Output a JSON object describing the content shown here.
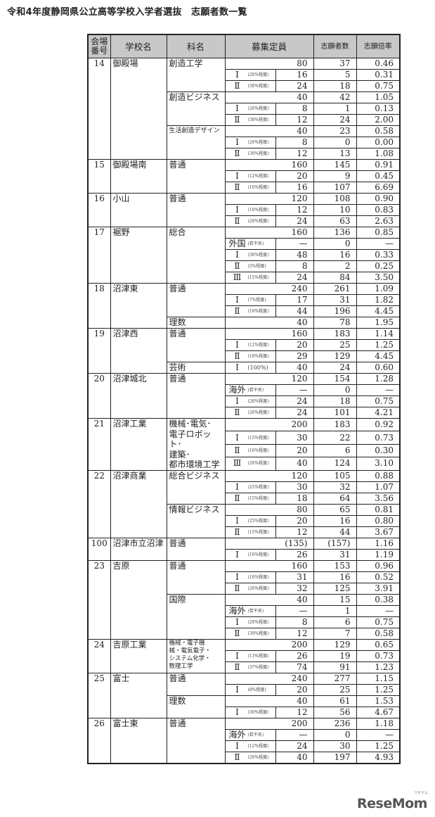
{
  "title": "令和4年度静岡県公立高等学校入学者選抜　志願者数一覧",
  "headers": {
    "no": "会場\n番号",
    "school": "学校名",
    "major": "科名",
    "capacity": "募集定員",
    "applicants": "志願者数",
    "ratio": "志願倍率"
  },
  "logo": {
    "text": "ReseMom",
    "sub": "リセマム"
  },
  "schools": [
    {
      "no": "14",
      "name": "御殿場",
      "majors": [
        {
          "name": "創造工学",
          "total": [
            "80",
            "37",
            "0.46"
          ],
          "subs": [
            [
              "Ⅰ",
              "(20%程度)",
              "16",
              "5",
              "0.31"
            ],
            [
              "Ⅱ",
              "(30%程度)",
              "24",
              "18",
              "0.75"
            ]
          ]
        },
        {
          "name": "創造ビジネス",
          "total": [
            "40",
            "42",
            "1.05"
          ],
          "subs": [
            [
              "Ⅰ",
              "(20%程度)",
              "8",
              "1",
              "0.13"
            ],
            [
              "Ⅱ",
              "(30%程度)",
              "12",
              "24",
              "2.00"
            ]
          ]
        },
        {
          "name": "生活創造デザイン",
          "style": "xs",
          "total": [
            "40",
            "23",
            "0.58"
          ],
          "subs": [
            [
              "Ⅰ",
              "(20%程度)",
              "8",
              "0",
              "0.00"
            ],
            [
              "Ⅱ",
              "(30%程度)",
              "12",
              "13",
              "1.08"
            ]
          ]
        }
      ]
    },
    {
      "no": "15",
      "name": "御殿場南",
      "majors": [
        {
          "name": "普通",
          "total": [
            "160",
            "145",
            "0.91"
          ],
          "subs": [
            [
              "Ⅰ",
              "(12%程度)",
              "20",
              "9",
              "0.45"
            ],
            [
              "Ⅱ",
              "(10%程度)",
              "16",
              "107",
              "6.69"
            ]
          ]
        }
      ]
    },
    {
      "no": "16",
      "name": "小山",
      "majors": [
        {
          "name": "普通",
          "total": [
            "120",
            "108",
            "0.90"
          ],
          "subs": [
            [
              "Ⅰ",
              "(10%程度)",
              "12",
              "10",
              "0.83"
            ],
            [
              "Ⅱ",
              "(20%程度)",
              "24",
              "63",
              "2.63"
            ]
          ]
        }
      ]
    },
    {
      "no": "17",
      "name": "裾野",
      "majors": [
        {
          "name": "総合",
          "total": [
            "160",
            "136",
            "0.85"
          ],
          "subs": [
            [
              "外国",
              "(若干名)",
              "—",
              "0",
              "—"
            ],
            [
              "Ⅰ",
              "(30%程度)",
              "48",
              "16",
              "0.33"
            ],
            [
              "Ⅱ",
              "(5%程度)",
              "8",
              "2",
              "0.25"
            ],
            [
              "Ⅲ",
              "(15%程度)",
              "24",
              "84",
              "3.50"
            ]
          ]
        }
      ]
    },
    {
      "no": "18",
      "name": "沼津東",
      "majors": [
        {
          "name": "普通",
          "total": [
            "240",
            "261",
            "1.09"
          ],
          "subs": [
            [
              "Ⅰ",
              "(7%程度)",
              "17",
              "31",
              "1.82"
            ],
            [
              "Ⅱ",
              "(18%程度)",
              "44",
              "196",
              "4.45"
            ]
          ]
        },
        {
          "name": "理数",
          "total": [
            "40",
            "78",
            "1.95"
          ],
          "subs": []
        }
      ]
    },
    {
      "no": "19",
      "name": "沼津西",
      "majors": [
        {
          "name": "普通",
          "total": [
            "160",
            "183",
            "1.14"
          ],
          "subs": [
            [
              "Ⅰ",
              "(12%程度)",
              "20",
              "25",
              "1.25"
            ],
            [
              "Ⅱ",
              "(18%程度)",
              "29",
              "129",
              "4.45"
            ]
          ]
        },
        {
          "name": "芸術",
          "total": null,
          "subs": [
            [
              "Ⅰ",
              "(100%)",
              "40",
              "24",
              "0.60"
            ]
          ]
        }
      ]
    },
    {
      "no": "20",
      "name": "沼津城北",
      "majors": [
        {
          "name": "普通",
          "total": [
            "120",
            "154",
            "1.28"
          ],
          "subs": [
            [
              "海外",
              "(若干名)",
              "—",
              "0",
              "—"
            ],
            [
              "Ⅰ",
              "(20%程度)",
              "24",
              "18",
              "0.75"
            ],
            [
              "Ⅱ",
              "(20%程度)",
              "24",
              "101",
              "4.21"
            ]
          ]
        }
      ]
    },
    {
      "no": "21",
      "name": "沼津工業",
      "majors": [
        {
          "name": "機械･電気･\n電子ロボット･\n建築･\n都市環境工学",
          "style": "multi",
          "total": [
            "200",
            "183",
            "0.92"
          ],
          "subs": [
            [
              "Ⅰ",
              "(15%程度)",
              "30",
              "22",
              "0.73"
            ],
            [
              "Ⅱ",
              "(10%程度)",
              "20",
              "6",
              "0.30"
            ],
            [
              "Ⅲ",
              "(20%程度)",
              "40",
              "124",
              "3.10"
            ]
          ]
        }
      ]
    },
    {
      "no": "22",
      "name": "沼津商業",
      "majors": [
        {
          "name": "総合ビジネス",
          "total": [
            "120",
            "105",
            "0.88"
          ],
          "subs": [
            [
              "Ⅰ",
              "(25%程度)",
              "30",
              "32",
              "1.07"
            ],
            [
              "Ⅱ",
              "(15%程度)",
              "18",
              "64",
              "3.56"
            ]
          ]
        },
        {
          "name": "情報ビジネス",
          "total": [
            "80",
            "65",
            "0.81"
          ],
          "subs": [
            [
              "Ⅰ",
              "(25%程度)",
              "20",
              "16",
              "0.80"
            ],
            [
              "Ⅱ",
              "(15%程度)",
              "12",
              "44",
              "3.67"
            ]
          ]
        }
      ]
    },
    {
      "no": "100",
      "name": "沼津市立沼津",
      "majors": [
        {
          "name": "普通",
          "total": [
            "(135)",
            "(157)",
            "1.16"
          ],
          "subs": [
            [
              "Ⅰ",
              "(10%程度)",
              "26",
              "31",
              "1.19"
            ]
          ]
        }
      ]
    },
    {
      "no": "23",
      "name": "吉原",
      "majors": [
        {
          "name": "普通",
          "total": [
            "160",
            "153",
            "0.96"
          ],
          "subs": [
            [
              "Ⅰ",
              "(10%程度)",
              "31",
              "16",
              "0.52"
            ],
            [
              "Ⅱ",
              "(20%程度)",
              "32",
              "125",
              "3.91"
            ]
          ]
        },
        {
          "name": "国際",
          "total": [
            "40",
            "15",
            "0.38"
          ],
          "subs": [
            [
              "海外",
              "(若干名)",
              "—",
              "1",
              "—"
            ],
            [
              "Ⅰ",
              "(20%程度)",
              "8",
              "6",
              "0.75"
            ],
            [
              "Ⅱ",
              "(30%程度)",
              "12",
              "7",
              "0.58"
            ]
          ]
        }
      ]
    },
    {
      "no": "24",
      "name": "吉原工業",
      "majors": [
        {
          "name": "機械・電子機\n械・電気電子・\nシステム化学・\n数理工学",
          "style": "multi tiny",
          "total": [
            "200",
            "129",
            "0.65"
          ],
          "subs": [
            [
              "Ⅰ",
              "(13%程度)",
              "26",
              "19",
              "0.73"
            ],
            [
              "Ⅱ",
              "(37%程度)",
              "74",
              "91",
              "1.23"
            ]
          ]
        }
      ]
    },
    {
      "no": "25",
      "name": "富士",
      "majors": [
        {
          "name": "普通",
          "total": [
            "240",
            "277",
            "1.15"
          ],
          "subs": [
            [
              "Ⅰ",
              "(8%程度)",
              "20",
              "25",
              "1.25"
            ]
          ]
        },
        {
          "name": "理数",
          "total": [
            "40",
            "61",
            "1.53"
          ],
          "subs": [
            [
              "Ⅰ",
              "(30%程度)",
              "12",
              "56",
              "4.67"
            ]
          ]
        }
      ]
    },
    {
      "no": "26",
      "name": "富士東",
      "majors": [
        {
          "name": "普通",
          "total": [
            "200",
            "236",
            "1.18"
          ],
          "subs": [
            [
              "海外",
              "(若干名)",
              "—",
              "0",
              "—"
            ],
            [
              "Ⅰ",
              "(12%程度)",
              "24",
              "30",
              "1.25"
            ],
            [
              "Ⅱ",
              "(20%程度)",
              "40",
              "197",
              "4.93"
            ]
          ]
        }
      ]
    }
  ]
}
